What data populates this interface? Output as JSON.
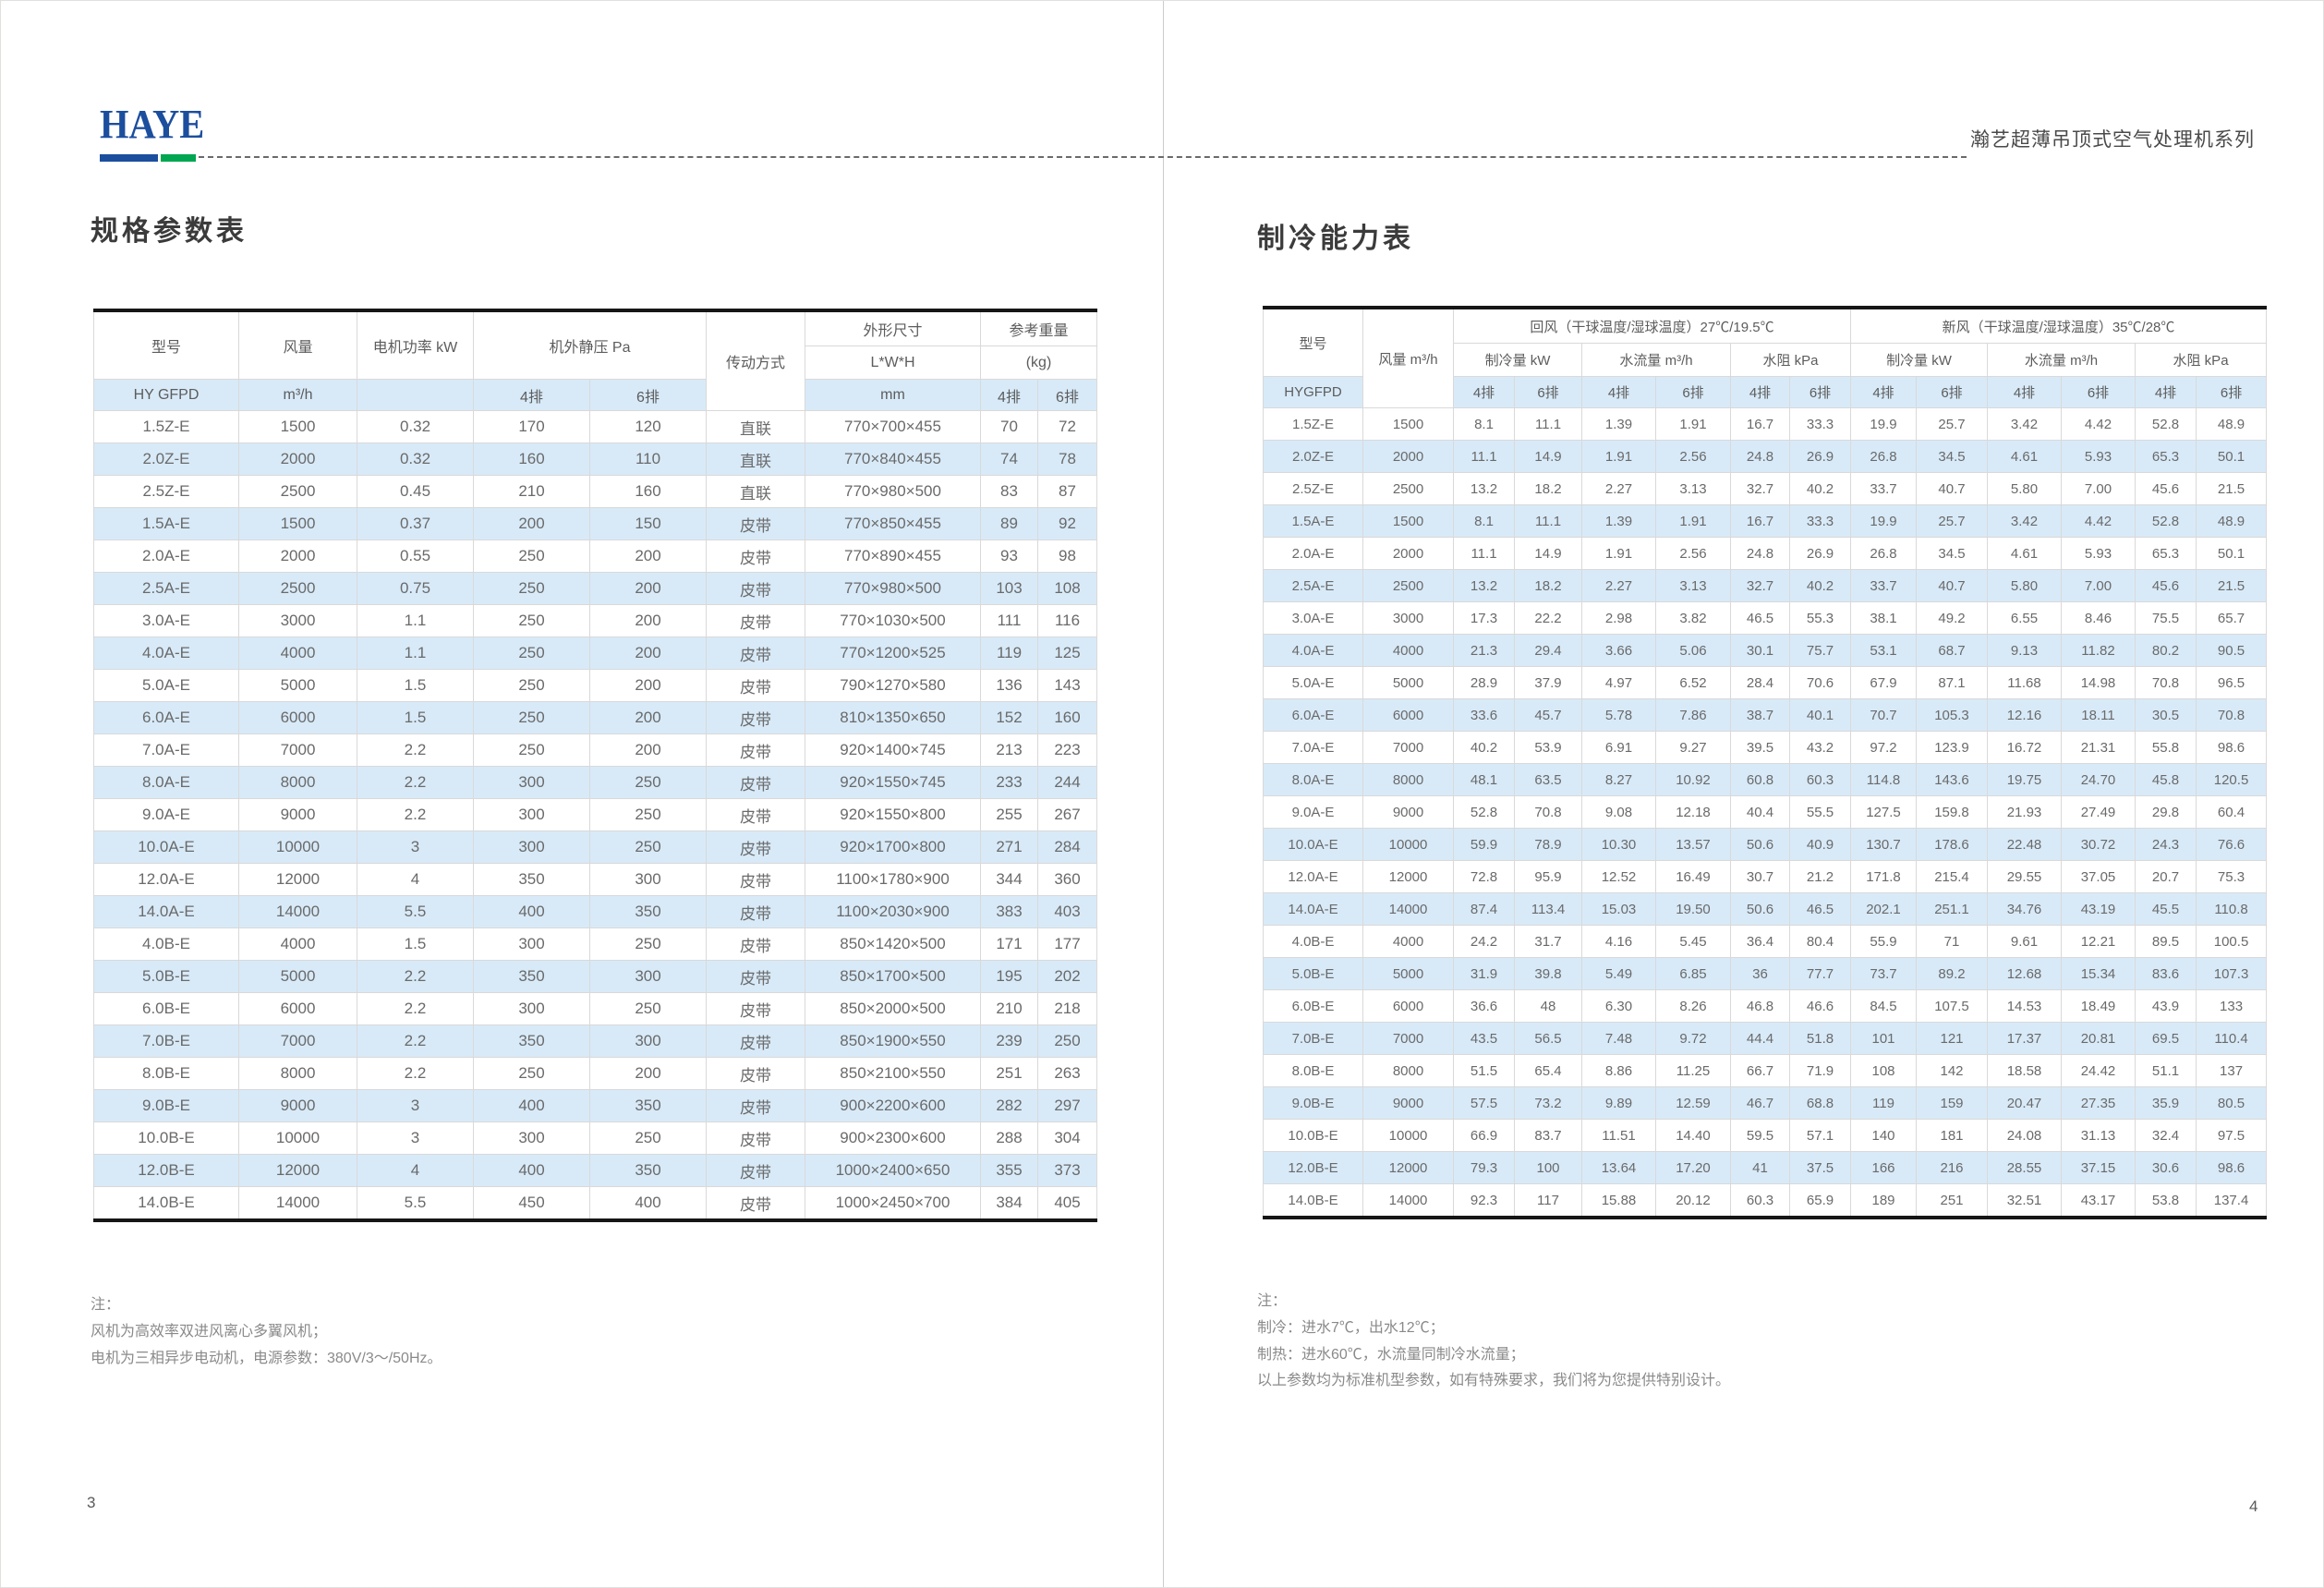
{
  "colors": {
    "logo_blue": "#1c4e9e",
    "logo_green": "#00a651",
    "row_blue": "#d8eaf8"
  },
  "brand": {
    "logo": "HAYE",
    "series_title": "瀚艺超薄吊顶式空气处理机系列"
  },
  "left_page": {
    "title": "规格参数表",
    "page_number": "3",
    "table": {
      "headers": {
        "model": "型号",
        "airflow": "风量",
        "motor_power": "电机功率 kW",
        "static_pressure": "机外静压 Pa",
        "transmission": "传动方式",
        "dimensions": "外形尺寸",
        "lwh": "L*W*H",
        "weight": "参考重量",
        "kg": "(kg)",
        "model_code": "HY GFPD",
        "airflow_unit": "m³/h",
        "mm": "mm",
        "col4": "4排",
        "col6": "6排"
      },
      "rows": [
        [
          "1.5Z-E",
          "1500",
          "0.32",
          "170",
          "120",
          "直联",
          "770×700×455",
          "70",
          "72"
        ],
        [
          "2.0Z-E",
          "2000",
          "0.32",
          "160",
          "110",
          "直联",
          "770×840×455",
          "74",
          "78"
        ],
        [
          "2.5Z-E",
          "2500",
          "0.45",
          "210",
          "160",
          "直联",
          "770×980×500",
          "83",
          "87"
        ],
        [
          "1.5A-E",
          "1500",
          "0.37",
          "200",
          "150",
          "皮带",
          "770×850×455",
          "89",
          "92"
        ],
        [
          "2.0A-E",
          "2000",
          "0.55",
          "250",
          "200",
          "皮带",
          "770×890×455",
          "93",
          "98"
        ],
        [
          "2.5A-E",
          "2500",
          "0.75",
          "250",
          "200",
          "皮带",
          "770×980×500",
          "103",
          "108"
        ],
        [
          "3.0A-E",
          "3000",
          "1.1",
          "250",
          "200",
          "皮带",
          "770×1030×500",
          "111",
          "116"
        ],
        [
          "4.0A-E",
          "4000",
          "1.1",
          "250",
          "200",
          "皮带",
          "770×1200×525",
          "119",
          "125"
        ],
        [
          "5.0A-E",
          "5000",
          "1.5",
          "250",
          "200",
          "皮带",
          "790×1270×580",
          "136",
          "143"
        ],
        [
          "6.0A-E",
          "6000",
          "1.5",
          "250",
          "200",
          "皮带",
          "810×1350×650",
          "152",
          "160"
        ],
        [
          "7.0A-E",
          "7000",
          "2.2",
          "250",
          "200",
          "皮带",
          "920×1400×745",
          "213",
          "223"
        ],
        [
          "8.0A-E",
          "8000",
          "2.2",
          "300",
          "250",
          "皮带",
          "920×1550×745",
          "233",
          "244"
        ],
        [
          "9.0A-E",
          "9000",
          "2.2",
          "300",
          "250",
          "皮带",
          "920×1550×800",
          "255",
          "267"
        ],
        [
          "10.0A-E",
          "10000",
          "3",
          "300",
          "250",
          "皮带",
          "920×1700×800",
          "271",
          "284"
        ],
        [
          "12.0A-E",
          "12000",
          "4",
          "350",
          "300",
          "皮带",
          "1100×1780×900",
          "344",
          "360"
        ],
        [
          "14.0A-E",
          "14000",
          "5.5",
          "400",
          "350",
          "皮带",
          "1100×2030×900",
          "383",
          "403"
        ],
        [
          "4.0B-E",
          "4000",
          "1.5",
          "300",
          "250",
          "皮带",
          "850×1420×500",
          "171",
          "177"
        ],
        [
          "5.0B-E",
          "5000",
          "2.2",
          "350",
          "300",
          "皮带",
          "850×1700×500",
          "195",
          "202"
        ],
        [
          "6.0B-E",
          "6000",
          "2.2",
          "300",
          "250",
          "皮带",
          "850×2000×500",
          "210",
          "218"
        ],
        [
          "7.0B-E",
          "7000",
          "2.2",
          "350",
          "300",
          "皮带",
          "850×1900×550",
          "239",
          "250"
        ],
        [
          "8.0B-E",
          "8000",
          "2.2",
          "250",
          "200",
          "皮带",
          "850×2100×550",
          "251",
          "263"
        ],
        [
          "9.0B-E",
          "9000",
          "3",
          "400",
          "350",
          "皮带",
          "900×2200×600",
          "282",
          "297"
        ],
        [
          "10.0B-E",
          "10000",
          "3",
          "300",
          "250",
          "皮带",
          "900×2300×600",
          "288",
          "304"
        ],
        [
          "12.0B-E",
          "12000",
          "4",
          "400",
          "350",
          "皮带",
          "1000×2400×650",
          "355",
          "373"
        ],
        [
          "14.0B-E",
          "14000",
          "5.5",
          "450",
          "400",
          "皮带",
          "1000×2450×700",
          "384",
          "405"
        ]
      ]
    },
    "notes": {
      "line1": "注：",
      "line2": "风机为高效率双进风离心多翼风机；",
      "line3": "电机为三相异步电动机，电源参数：380V/3～/50Hz。"
    }
  },
  "right_page": {
    "title": "制冷能力表",
    "page_number": "4",
    "table": {
      "headers": {
        "model": "型号",
        "airflow": "风量 m³/h",
        "return_air": "回风（干球温度/湿球温度）27℃/19.5℃",
        "fresh_air": "新风（干球温度/湿球温度）35℃/28℃",
        "cooling_capacity": "制冷量 kW",
        "water_flow": "水流量 m³/h",
        "water_resistance": "水阻  kPa",
        "model_code": "HYGFPD",
        "col4": "4排",
        "col6": "6排"
      },
      "rows": [
        [
          "1.5Z-E",
          "1500",
          "8.1",
          "11.1",
          "1.39",
          "1.91",
          "16.7",
          "33.3",
          "19.9",
          "25.7",
          "3.42",
          "4.42",
          "52.8",
          "48.9"
        ],
        [
          "2.0Z-E",
          "2000",
          "11.1",
          "14.9",
          "1.91",
          "2.56",
          "24.8",
          "26.9",
          "26.8",
          "34.5",
          "4.61",
          "5.93",
          "65.3",
          "50.1"
        ],
        [
          "2.5Z-E",
          "2500",
          "13.2",
          "18.2",
          "2.27",
          "3.13",
          "32.7",
          "40.2",
          "33.7",
          "40.7",
          "5.80",
          "7.00",
          "45.6",
          "21.5"
        ],
        [
          "1.5A-E",
          "1500",
          "8.1",
          "11.1",
          "1.39",
          "1.91",
          "16.7",
          "33.3",
          "19.9",
          "25.7",
          "3.42",
          "4.42",
          "52.8",
          "48.9"
        ],
        [
          "2.0A-E",
          "2000",
          "11.1",
          "14.9",
          "1.91",
          "2.56",
          "24.8",
          "26.9",
          "26.8",
          "34.5",
          "4.61",
          "5.93",
          "65.3",
          "50.1"
        ],
        [
          "2.5A-E",
          "2500",
          "13.2",
          "18.2",
          "2.27",
          "3.13",
          "32.7",
          "40.2",
          "33.7",
          "40.7",
          "5.80",
          "7.00",
          "45.6",
          "21.5"
        ],
        [
          "3.0A-E",
          "3000",
          "17.3",
          "22.2",
          "2.98",
          "3.82",
          "46.5",
          "55.3",
          "38.1",
          "49.2",
          "6.55",
          "8.46",
          "75.5",
          "65.7"
        ],
        [
          "4.0A-E",
          "4000",
          "21.3",
          "29.4",
          "3.66",
          "5.06",
          "30.1",
          "75.7",
          "53.1",
          "68.7",
          "9.13",
          "11.82",
          "80.2",
          "90.5"
        ],
        [
          "5.0A-E",
          "5000",
          "28.9",
          "37.9",
          "4.97",
          "6.52",
          "28.4",
          "70.6",
          "67.9",
          "87.1",
          "11.68",
          "14.98",
          "70.8",
          "96.5"
        ],
        [
          "6.0A-E",
          "6000",
          "33.6",
          "45.7",
          "5.78",
          "7.86",
          "38.7",
          "40.1",
          "70.7",
          "105.3",
          "12.16",
          "18.11",
          "30.5",
          "70.8"
        ],
        [
          "7.0A-E",
          "7000",
          "40.2",
          "53.9",
          "6.91",
          "9.27",
          "39.5",
          "43.2",
          "97.2",
          "123.9",
          "16.72",
          "21.31",
          "55.8",
          "98.6"
        ],
        [
          "8.0A-E",
          "8000",
          "48.1",
          "63.5",
          "8.27",
          "10.92",
          "60.8",
          "60.3",
          "114.8",
          "143.6",
          "19.75",
          "24.70",
          "45.8",
          "120.5"
        ],
        [
          "9.0A-E",
          "9000",
          "52.8",
          "70.8",
          "9.08",
          "12.18",
          "40.4",
          "55.5",
          "127.5",
          "159.8",
          "21.93",
          "27.49",
          "29.8",
          "60.4"
        ],
        [
          "10.0A-E",
          "10000",
          "59.9",
          "78.9",
          "10.30",
          "13.57",
          "50.6",
          "40.9",
          "130.7",
          "178.6",
          "22.48",
          "30.72",
          "24.3",
          "76.6"
        ],
        [
          "12.0A-E",
          "12000",
          "72.8",
          "95.9",
          "12.52",
          "16.49",
          "30.7",
          "21.2",
          "171.8",
          "215.4",
          "29.55",
          "37.05",
          "20.7",
          "75.3"
        ],
        [
          "14.0A-E",
          "14000",
          "87.4",
          "113.4",
          "15.03",
          "19.50",
          "50.6",
          "46.5",
          "202.1",
          "251.1",
          "34.76",
          "43.19",
          "45.5",
          "110.8"
        ],
        [
          "4.0B-E",
          "4000",
          "24.2",
          "31.7",
          "4.16",
          "5.45",
          "36.4",
          "80.4",
          "55.9",
          "71",
          "9.61",
          "12.21",
          "89.5",
          "100.5"
        ],
        [
          "5.0B-E",
          "5000",
          "31.9",
          "39.8",
          "5.49",
          "6.85",
          "36",
          "77.7",
          "73.7",
          "89.2",
          "12.68",
          "15.34",
          "83.6",
          "107.3"
        ],
        [
          "6.0B-E",
          "6000",
          "36.6",
          "48",
          "6.30",
          "8.26",
          "46.8",
          "46.6",
          "84.5",
          "107.5",
          "14.53",
          "18.49",
          "43.9",
          "133"
        ],
        [
          "7.0B-E",
          "7000",
          "43.5",
          "56.5",
          "7.48",
          "9.72",
          "44.4",
          "51.8",
          "101",
          "121",
          "17.37",
          "20.81",
          "69.5",
          "110.4"
        ],
        [
          "8.0B-E",
          "8000",
          "51.5",
          "65.4",
          "8.86",
          "11.25",
          "66.7",
          "71.9",
          "108",
          "142",
          "18.58",
          "24.42",
          "51.1",
          "137"
        ],
        [
          "9.0B-E",
          "9000",
          "57.5",
          "73.2",
          "9.89",
          "12.59",
          "46.7",
          "68.8",
          "119",
          "159",
          "20.47",
          "27.35",
          "35.9",
          "80.5"
        ],
        [
          "10.0B-E",
          "10000",
          "66.9",
          "83.7",
          "11.51",
          "14.40",
          "59.5",
          "57.1",
          "140",
          "181",
          "24.08",
          "31.13",
          "32.4",
          "97.5"
        ],
        [
          "12.0B-E",
          "12000",
          "79.3",
          "100",
          "13.64",
          "17.20",
          "41",
          "37.5",
          "166",
          "216",
          "28.55",
          "37.15",
          "30.6",
          "98.6"
        ],
        [
          "14.0B-E",
          "14000",
          "92.3",
          "117",
          "15.88",
          "20.12",
          "60.3",
          "65.9",
          "189",
          "251",
          "32.51",
          "43.17",
          "53.8",
          "137.4"
        ]
      ]
    },
    "notes": {
      "line1": "注：",
      "line2": "制冷：进水7℃，出水12℃；",
      "line3": "制热：进水60℃，水流量同制冷水流量；",
      "line4": "以上参数均为标准机型参数，如有特殊要求，我们将为您提供特别设计。"
    }
  }
}
